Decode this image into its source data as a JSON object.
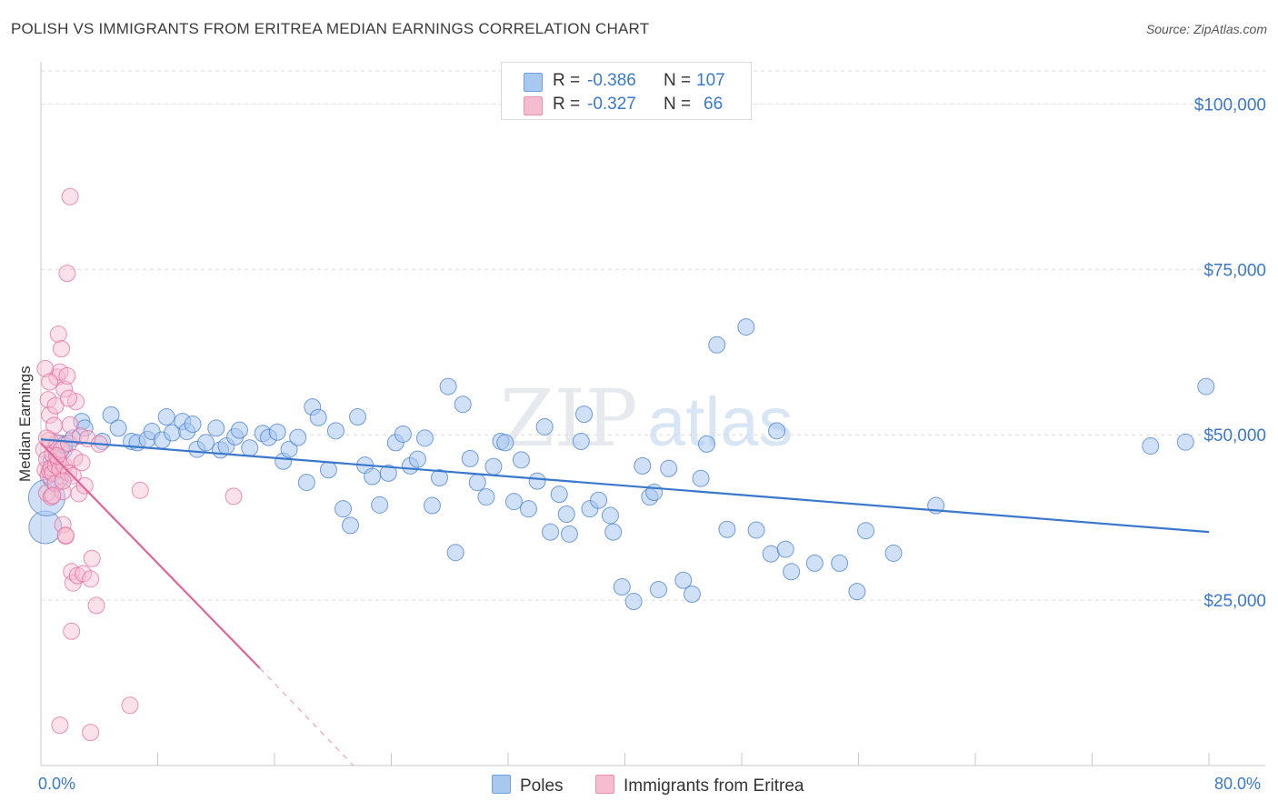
{
  "title": "POLISH VS IMMIGRANTS FROM ERITREA MEDIAN EARNINGS CORRELATION CHART",
  "source": "Source: ZipAtlas.com",
  "watermark": "ZIPatlas",
  "legend": {
    "rows": [
      {
        "r_label": "R =",
        "r_value": "-0.386",
        "n_label": "N =",
        "n_value": "107",
        "color": "#a9c8f0",
        "edge": "#6f9fe0"
      },
      {
        "r_label": "R =",
        "r_value": "-0.327",
        "n_label": "N =",
        "n_value": "66",
        "color": "#f6bcd0",
        "edge": "#ec8fb0"
      }
    ]
  },
  "bottom_legend": [
    {
      "label": "Poles",
      "color": "#a9c8f0",
      "edge": "#6f9fe0"
    },
    {
      "label": "Immigrants from Eritrea",
      "color": "#f6bcd0",
      "edge": "#ec8fb0"
    }
  ],
  "chart_data": {
    "type": "scatter",
    "title": "POLISH VS IMMIGRANTS FROM ERITREA MEDIAN EARNINGS CORRELATION CHART",
    "xlabel": "",
    "ylabel": "Median Earnings",
    "xlim": [
      0,
      80
    ],
    "ylim": [
      0,
      105000
    ],
    "x_tick_labels": [
      "0.0%",
      "80.0%"
    ],
    "y_ticks": [
      25000,
      50000,
      75000,
      100000
    ],
    "y_tick_labels": [
      "$25,000",
      "$50,000",
      "$75,000",
      "$100,000"
    ],
    "grid": true,
    "series": [
      {
        "name": "Poles",
        "color": "#3a78cc",
        "fill": "#a9c8f0",
        "trend": {
          "x0": 0,
          "y0": 49300,
          "x1": 80,
          "y1": 35300
        },
        "points": [
          [
            0.3,
            36000
          ],
          [
            0.4,
            40500
          ],
          [
            1.0,
            43500
          ],
          [
            1.3,
            48000
          ],
          [
            1.6,
            48500
          ],
          [
            2.2,
            49500
          ],
          [
            2.8,
            52000
          ],
          [
            3.0,
            51000
          ],
          [
            4.2,
            49000
          ],
          [
            4.8,
            53000
          ],
          [
            5.3,
            51000
          ],
          [
            6.2,
            49000
          ],
          [
            6.6,
            48800
          ],
          [
            7.3,
            49300
          ],
          [
            7.6,
            50500
          ],
          [
            8.3,
            49200
          ],
          [
            8.6,
            52700
          ],
          [
            9.0,
            50300
          ],
          [
            9.7,
            52000
          ],
          [
            10.0,
            50500
          ],
          [
            10.4,
            51600
          ],
          [
            10.7,
            47800
          ],
          [
            11.3,
            48800
          ],
          [
            12.0,
            51000
          ],
          [
            12.3,
            47700
          ],
          [
            12.7,
            48300
          ],
          [
            13.3,
            49700
          ],
          [
            13.6,
            50700
          ],
          [
            14.3,
            48000
          ],
          [
            15.2,
            50200
          ],
          [
            15.6,
            49600
          ],
          [
            16.2,
            50400
          ],
          [
            16.6,
            46000
          ],
          [
            17.0,
            47800
          ],
          [
            17.6,
            49600
          ],
          [
            18.2,
            42800
          ],
          [
            18.6,
            54200
          ],
          [
            19.0,
            52600
          ],
          [
            19.7,
            44700
          ],
          [
            20.2,
            50600
          ],
          [
            20.7,
            38800
          ],
          [
            21.2,
            36300
          ],
          [
            21.7,
            52700
          ],
          [
            22.2,
            45400
          ],
          [
            22.7,
            43700
          ],
          [
            23.2,
            39400
          ],
          [
            23.8,
            44200
          ],
          [
            24.3,
            48800
          ],
          [
            24.8,
            50100
          ],
          [
            25.3,
            45300
          ],
          [
            25.8,
            46300
          ],
          [
            26.3,
            49500
          ],
          [
            26.8,
            39300
          ],
          [
            27.3,
            43500
          ],
          [
            27.9,
            57300
          ],
          [
            28.4,
            32200
          ],
          [
            28.9,
            54600
          ],
          [
            29.4,
            46400
          ],
          [
            29.9,
            42800
          ],
          [
            30.5,
            40600
          ],
          [
            31.0,
            45200
          ],
          [
            31.5,
            49000
          ],
          [
            31.8,
            48800
          ],
          [
            32.4,
            39900
          ],
          [
            32.9,
            46200
          ],
          [
            33.4,
            38800
          ],
          [
            34.0,
            43000
          ],
          [
            34.5,
            51200
          ],
          [
            34.9,
            35300
          ],
          [
            35.5,
            41000
          ],
          [
            36.0,
            38000
          ],
          [
            36.2,
            35000
          ],
          [
            37.0,
            49000
          ],
          [
            37.2,
            53100
          ],
          [
            37.6,
            38800
          ],
          [
            38.2,
            40100
          ],
          [
            39.0,
            37800
          ],
          [
            39.2,
            35300
          ],
          [
            39.8,
            27000
          ],
          [
            40.6,
            24800
          ],
          [
            41.2,
            45300
          ],
          [
            41.7,
            40600
          ],
          [
            42.0,
            41300
          ],
          [
            42.3,
            26600
          ],
          [
            43.0,
            44900
          ],
          [
            44.0,
            28000
          ],
          [
            44.6,
            25900
          ],
          [
            45.2,
            43400
          ],
          [
            45.6,
            48600
          ],
          [
            46.3,
            63600
          ],
          [
            47.0,
            35700
          ],
          [
            48.3,
            66300
          ],
          [
            49.0,
            35600
          ],
          [
            50.0,
            32000
          ],
          [
            50.4,
            50600
          ],
          [
            51.0,
            32700
          ],
          [
            51.4,
            29300
          ],
          [
            53.0,
            30600
          ],
          [
            54.7,
            30600
          ],
          [
            55.9,
            26300
          ],
          [
            56.5,
            35500
          ],
          [
            58.4,
            32100
          ],
          [
            61.3,
            39300
          ],
          [
            76.0,
            48300
          ],
          [
            78.4,
            48900
          ],
          [
            79.8,
            57300
          ],
          [
            0.7,
            46000
          ]
        ]
      },
      {
        "name": "Immigrants from Eritrea",
        "color": "#e2659a",
        "fill": "#f6bcd0",
        "trend": {
          "x0": 0,
          "y0": 48700,
          "x1": 15,
          "y1": 14700
        },
        "trend_dashed": {
          "x0": 15,
          "y0": 14700,
          "x1": 21.4,
          "y1": 0
        },
        "points": [
          [
            0.2,
            47800
          ],
          [
            0.3,
            44700
          ],
          [
            0.4,
            41200
          ],
          [
            0.4,
            46300
          ],
          [
            0.5,
            43900
          ],
          [
            0.5,
            55300
          ],
          [
            0.6,
            53000
          ],
          [
            0.6,
            49200
          ],
          [
            0.6,
            44500
          ],
          [
            0.7,
            45000
          ],
          [
            0.7,
            40600
          ],
          [
            0.8,
            47000
          ],
          [
            0.8,
            44200
          ],
          [
            0.9,
            51400
          ],
          [
            1.0,
            54400
          ],
          [
            1.0,
            45400
          ],
          [
            1.0,
            42600
          ],
          [
            1.1,
            58700
          ],
          [
            1.1,
            48800
          ],
          [
            1.2,
            65200
          ],
          [
            1.2,
            46100
          ],
          [
            1.3,
            59500
          ],
          [
            1.3,
            44800
          ],
          [
            1.4,
            63000
          ],
          [
            1.4,
            47800
          ],
          [
            1.5,
            41400
          ],
          [
            1.5,
            36400
          ],
          [
            1.6,
            56900
          ],
          [
            1.6,
            45300
          ],
          [
            1.7,
            34700
          ],
          [
            1.7,
            34800
          ],
          [
            1.8,
            74400
          ],
          [
            1.8,
            58900
          ],
          [
            1.9,
            48700
          ],
          [
            1.9,
            44200
          ],
          [
            2.0,
            86000
          ],
          [
            2.0,
            51500
          ],
          [
            2.1,
            29300
          ],
          [
            2.1,
            20300
          ],
          [
            2.2,
            43800
          ],
          [
            2.2,
            27600
          ],
          [
            2.3,
            46500
          ],
          [
            2.4,
            55000
          ],
          [
            2.5,
            28700
          ],
          [
            2.6,
            41100
          ],
          [
            2.7,
            49800
          ],
          [
            2.8,
            45800
          ],
          [
            2.9,
            29000
          ],
          [
            3.0,
            42300
          ],
          [
            3.2,
            49400
          ],
          [
            3.4,
            28200
          ],
          [
            3.5,
            31300
          ],
          [
            3.8,
            24200
          ],
          [
            4.0,
            48600
          ],
          [
            6.1,
            9100
          ],
          [
            6.8,
            41600
          ],
          [
            13.2,
            40700
          ],
          [
            1.3,
            6100
          ],
          [
            3.4,
            5000
          ],
          [
            0.4,
            49500
          ],
          [
            0.8,
            40800
          ],
          [
            1.1,
            46800
          ],
          [
            1.5,
            43000
          ],
          [
            0.3,
            60000
          ],
          [
            0.6,
            58000
          ],
          [
            1.9,
            55500
          ]
        ]
      }
    ]
  }
}
